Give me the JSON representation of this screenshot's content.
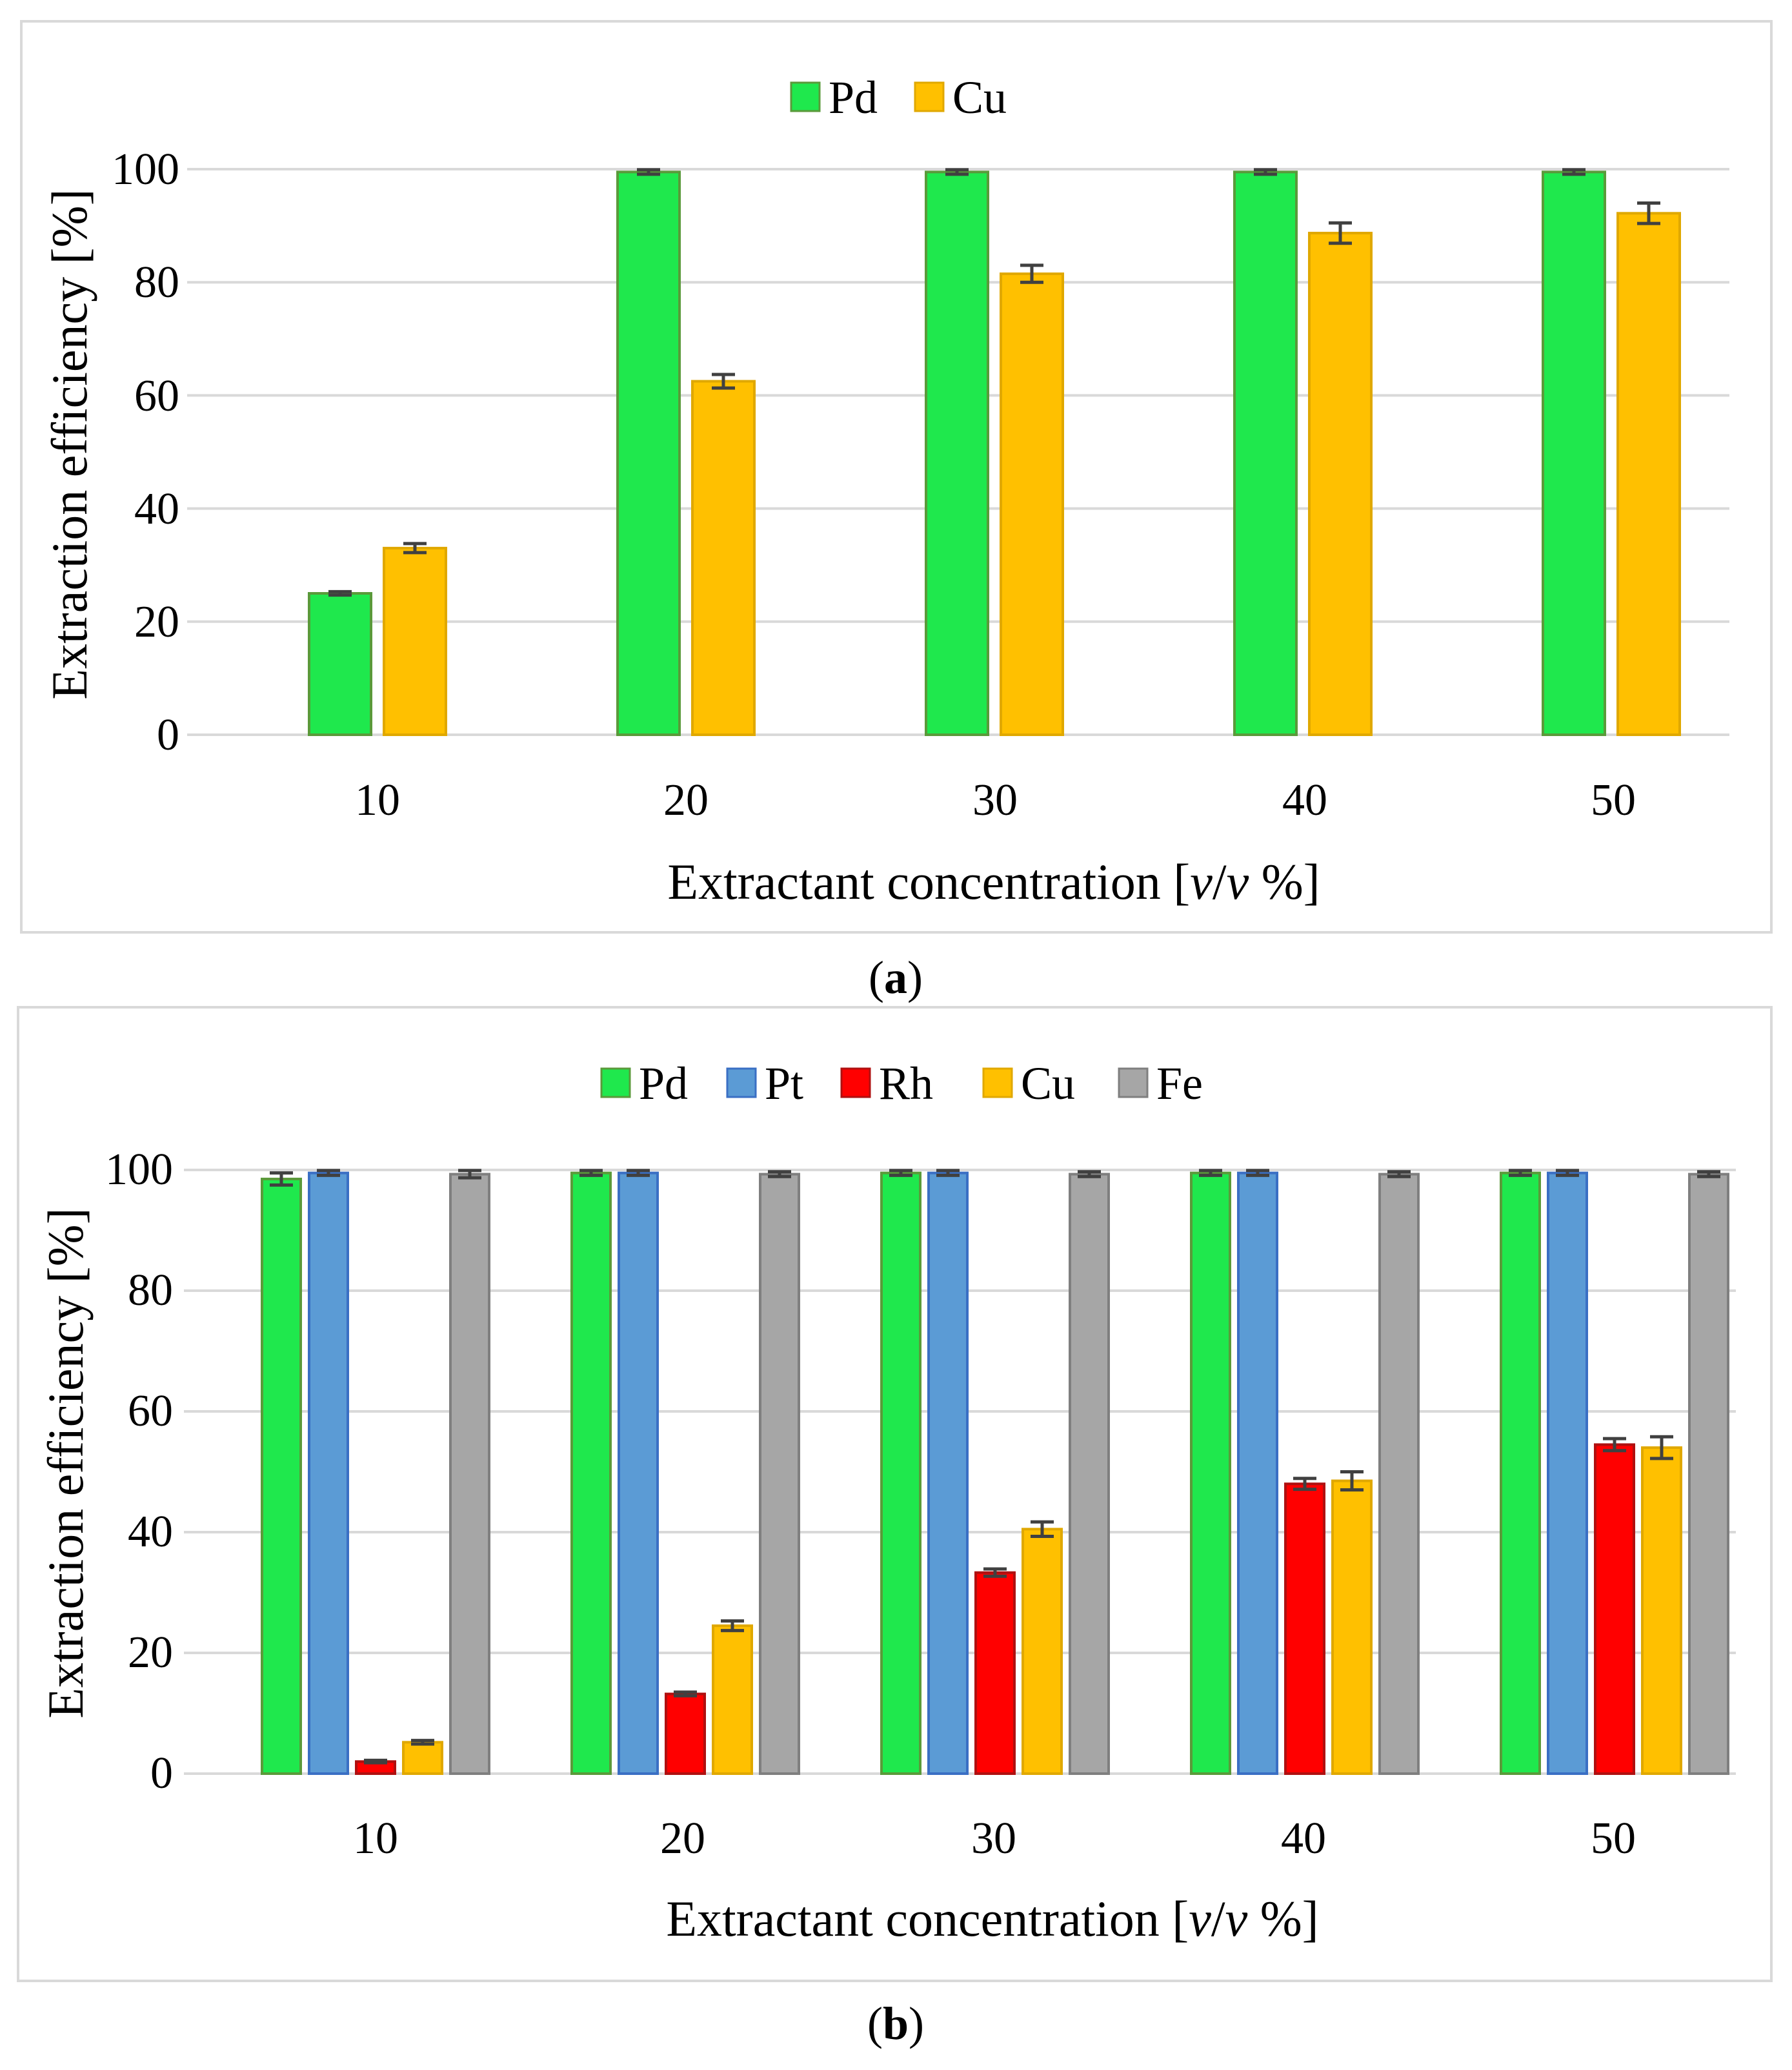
{
  "colors": {
    "Pd": "#1fe84d",
    "Pd_stroke": "#5a9a3a",
    "Pt": "#5b9bd5",
    "Pt_stroke": "#3a6fc4",
    "Rh": "#ff0000",
    "Rh_stroke": "#b01010",
    "Cu": "#ffc000",
    "Cu_stroke": "#e0a800",
    "Fe": "#a6a6a6",
    "Fe_stroke": "#7f7f7f",
    "grid": "#d9d9d9",
    "frame": "#d9d9d9",
    "errorbar": "#404040"
  },
  "chart_data": [
    {
      "type": "bar",
      "caption_paren_open": "(",
      "caption": "a",
      "caption_paren_close": ")",
      "title": "",
      "xlabel_prefix": "Extractant concentration [",
      "xlabel_v1": "v",
      "xlabel_slash": "/",
      "xlabel_v2": "v",
      "xlabel_suffix": " %]",
      "ylabel": "Extraction efficiency [%]",
      "ylim": [
        0,
        100
      ],
      "yticks": [
        "0",
        "20",
        "40",
        "60",
        "80",
        "100"
      ],
      "categories": [
        "10",
        "20",
        "30",
        "40",
        "50"
      ],
      "legend_position": "top-center",
      "series": [
        {
          "name": "Pd",
          "values": [
            25,
            99.5,
            99.5,
            99.5,
            99.5
          ],
          "errors": [
            0.3,
            0.4,
            0.4,
            0.4,
            0.4
          ]
        },
        {
          "name": "Cu",
          "values": [
            33,
            62.5,
            81.5,
            88.7,
            92.2
          ],
          "errors": [
            0.8,
            1.2,
            1.5,
            1.8,
            1.8
          ]
        }
      ]
    },
    {
      "type": "bar",
      "caption_paren_open": "(",
      "caption": "b",
      "caption_paren_close": ")",
      "title": "",
      "xlabel_prefix": "Extractant concentration [",
      "xlabel_v1": "v",
      "xlabel_slash": "/",
      "xlabel_v2": "v",
      "xlabel_suffix": " %]",
      "ylabel": "Extraction efficiency [%]",
      "ylim": [
        0,
        100
      ],
      "yticks": [
        "0",
        "20",
        "40",
        "60",
        "80",
        "100"
      ],
      "categories": [
        "10",
        "20",
        "30",
        "40",
        "50"
      ],
      "legend_position": "top-center",
      "series": [
        {
          "name": "Pd",
          "values": [
            98.5,
            99.5,
            99.5,
            99.5,
            99.5
          ],
          "errors": [
            1.0,
            0.4,
            0.4,
            0.4,
            0.4
          ]
        },
        {
          "name": "Pt",
          "values": [
            99.5,
            99.5,
            99.5,
            99.5,
            99.5
          ],
          "errors": [
            0.4,
            0.4,
            0.4,
            0.4,
            0.4
          ]
        },
        {
          "name": "Rh",
          "values": [
            2,
            13.2,
            33.3,
            48,
            54.5
          ],
          "errors": [
            0.2,
            0.3,
            0.6,
            0.9,
            1.0
          ]
        },
        {
          "name": "Cu",
          "values": [
            5.2,
            24.5,
            40.5,
            48.5,
            54
          ],
          "errors": [
            0.3,
            0.8,
            1.2,
            1.5,
            1.8
          ]
        },
        {
          "name": "Fe",
          "values": [
            99.3,
            99.3,
            99.3,
            99.3,
            99.3
          ],
          "errors": [
            0.6,
            0.4,
            0.4,
            0.4,
            0.4
          ]
        }
      ]
    }
  ]
}
